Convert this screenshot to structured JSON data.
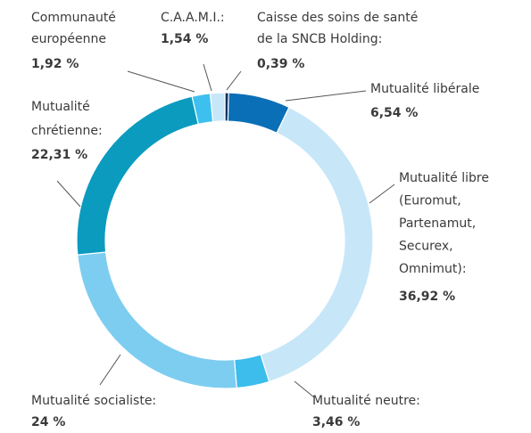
{
  "chart_data": {
    "type": "pie",
    "categories": [
      [
        "Caisse des soins de santé",
        "de la SNCB Holding:"
      ],
      [
        "Mutualité libérale"
      ],
      [
        "Mutualité libre",
        "(Euromut,",
        "Partenamut,",
        "Securex,",
        "Omnimut):"
      ],
      [
        "Mutualité neutre:"
      ],
      [
        "Mutualité socialiste:"
      ],
      [
        "Mutualité",
        "chrétienne:"
      ],
      [
        "Communauté",
        "européenne"
      ],
      [
        "C.A.A.M.I.:"
      ]
    ],
    "values": [
      0.39,
      6.54,
      36.92,
      3.46,
      24,
      22.31,
      1.92,
      1.54
    ],
    "value_labels": [
      "0,39 %",
      "6,54 %",
      "36,92 %",
      "3,46 %",
      "24 %",
      "22,31 %",
      "1,92 %",
      "1,54 %"
    ],
    "colors": [
      "#0d2e5c",
      "#0a6fb6",
      "#c7e7f9",
      "#3cbdec",
      "#7dcdf1",
      "#0b9bbf",
      "#3dc0ee",
      "#c7e7f9"
    ]
  }
}
